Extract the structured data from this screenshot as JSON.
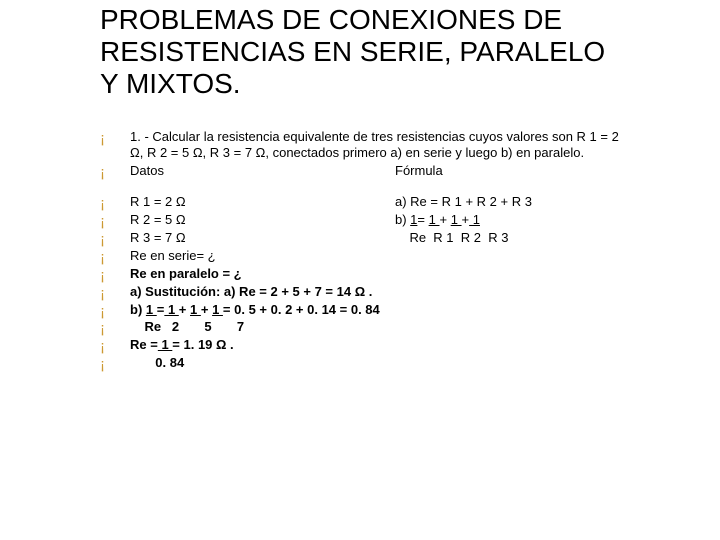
{
  "title": "PROBLEMAS DE CONEXIONES DE RESISTENCIAS EN SERIE, PARALELO Y MIXTOS.",
  "block1": {
    "p1": "1. - Calcular la resistencia equivalente de tres resistencias cuyos valores son R 1 = 2 Ω, R 2 = 5 Ω, R 3 = 7 Ω, conectados primero a) en serie y luego b) en paralelo.",
    "p2_left": "Datos",
    "p2_right": "Fórmula"
  },
  "block2": {
    "r1_left": "R 1 = 2 Ω",
    "r1_right_a": "a) Re = R 1 + R 2 + R 3",
    "r2_left": "R 2 = 5 Ω",
    "r2_right_b_prefix": "b) ",
    "r2_right_b_u1": " 1",
    "r2_right_b_eq": "= ",
    "r2_right_b_u2": " 1 ",
    "r2_right_b_plus1": "+ ",
    "r2_right_b_u3": " 1 ",
    "r2_right_b_plus2": "+",
    "r2_right_b_u4": "  1 ",
    "r3_left": "R 3 = 7 Ω",
    "r3_right": "    Re  R 1  R 2  R 3",
    "r4": "Re en serie= ¿",
    "r5": "Re en paralelo = ¿",
    "r6": "a) Sustitución: a) Re = 2 + 5 + 7 = 14 Ω .",
    "r7_prefix": "b) ",
    "r7_u1": " 1 ",
    "r7_eq1": "=",
    "r7_u2": " 1 ",
    "r7_plus1": " + ",
    "r7_u3": " 1 ",
    "r7_plus2": " + ",
    "r7_u4": " 1 ",
    "r7_rest": "= 0. 5 + 0. 2 + 0. 14 = 0. 84",
    "r8": "    Re   2       5       7",
    "r9_prefix": "Re =",
    "r9_u": "  1  ",
    "r9_rest": " =  1. 19 Ω .",
    "r10": "       0. 84"
  }
}
